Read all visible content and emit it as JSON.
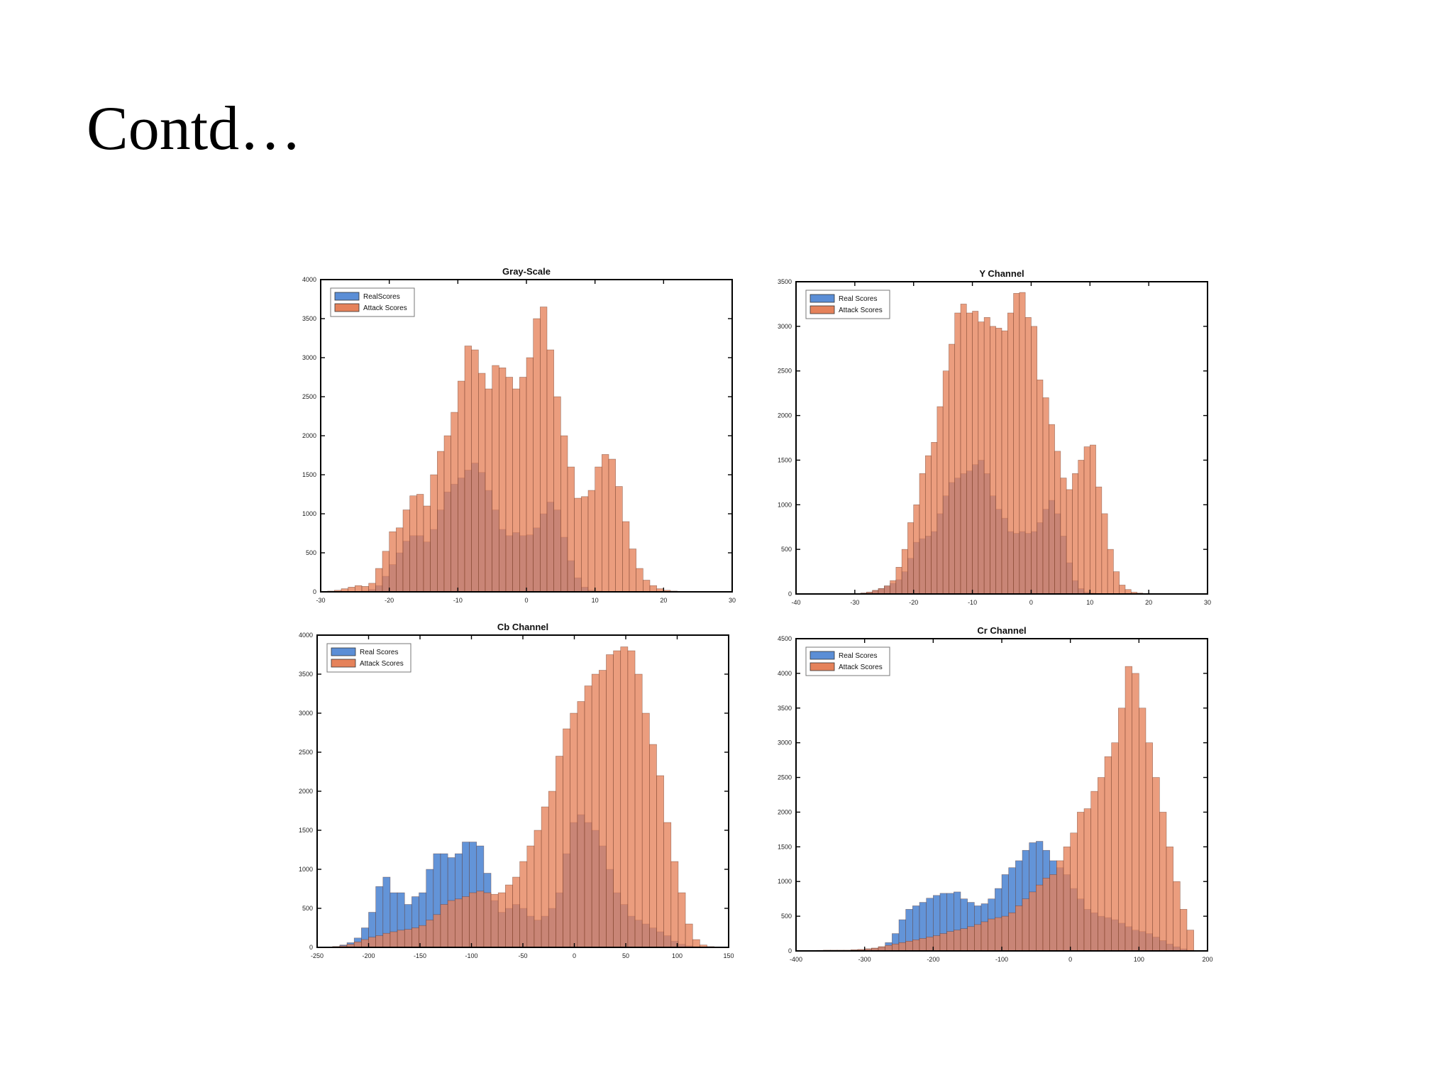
{
  "slide": {
    "title": "Contd…"
  },
  "colors": {
    "real": "#5B8ED6",
    "attack": "#E5825A",
    "edge": "#5a2a1a"
  },
  "chart_data": [
    {
      "type": "bar",
      "title": "Gray-Scale",
      "xlim": [
        -30,
        30
      ],
      "ylim": [
        0,
        4000
      ],
      "xticks": [
        -30,
        -20,
        -10,
        0,
        10,
        20,
        30
      ],
      "yticks": [
        0,
        500,
        1000,
        1500,
        2000,
        2500,
        3000,
        3500,
        4000
      ],
      "legend": {
        "placement": "top-left",
        "entries": [
          "RealScores",
          "Attack Scores"
        ]
      },
      "bin_edges": [
        -29,
        -28,
        -27,
        -26,
        -25,
        -24,
        -23,
        -22,
        -21,
        -20,
        -19,
        -18,
        -17,
        -16,
        -15,
        -14,
        -13,
        -12,
        -11,
        -10,
        -9,
        -8,
        -7,
        -6,
        -5,
        -4,
        -3,
        -2,
        -1,
        0,
        1,
        2,
        3,
        4,
        5,
        6,
        7,
        8,
        9,
        10,
        11,
        12,
        13,
        14,
        15,
        16,
        17,
        18,
        19,
        20,
        21,
        22,
        23,
        24,
        25,
        26,
        27,
        28,
        29
      ],
      "series": [
        {
          "name": "Real Scores",
          "values": [
            0,
            0,
            0,
            0,
            0,
            10,
            30,
            80,
            200,
            350,
            500,
            650,
            720,
            720,
            640,
            800,
            1050,
            1280,
            1380,
            1460,
            1560,
            1650,
            1530,
            1300,
            1050,
            800,
            720,
            760,
            720,
            730,
            820,
            1000,
            1150,
            1050,
            700,
            400,
            180,
            60,
            20,
            10,
            5,
            0,
            0,
            0,
            0,
            0,
            0,
            0,
            0,
            0,
            0,
            0,
            0,
            0,
            0,
            0,
            0,
            0
          ]
        },
        {
          "name": "Attack Scores",
          "values": [
            10,
            20,
            40,
            60,
            80,
            70,
            110,
            300,
            520,
            770,
            820,
            1050,
            1230,
            1250,
            1100,
            1500,
            1800,
            2000,
            2300,
            2700,
            3150,
            3100,
            2800,
            2600,
            2900,
            2870,
            2750,
            2600,
            2750,
            3000,
            3500,
            3650,
            3100,
            2500,
            2000,
            1600,
            1200,
            1220,
            1300,
            1600,
            1760,
            1700,
            1350,
            900,
            550,
            300,
            150,
            80,
            40,
            20,
            10,
            5,
            0,
            0,
            0,
            0,
            0,
            0
          ]
        }
      ]
    },
    {
      "type": "bar",
      "title": "Y Channel",
      "xlim": [
        -40,
        30
      ],
      "ylim": [
        0,
        3500
      ],
      "xticks": [
        -40,
        -30,
        -20,
        -10,
        0,
        10,
        20,
        30
      ],
      "yticks": [
        0,
        500,
        1000,
        1500,
        2000,
        2500,
        3000,
        3500
      ],
      "legend": {
        "placement": "top-left",
        "entries": [
          "Real Scores",
          "Attack Scores"
        ]
      },
      "bin_edges": [
        -31,
        -30,
        -29,
        -28,
        -27,
        -26,
        -25,
        -24,
        -23,
        -22,
        -21,
        -20,
        -19,
        -18,
        -17,
        -16,
        -15,
        -14,
        -13,
        -12,
        -11,
        -10,
        -9,
        -8,
        -7,
        -6,
        -5,
        -4,
        -3,
        -2,
        -1,
        0,
        1,
        2,
        3,
        4,
        5,
        6,
        7,
        8,
        9,
        10,
        11,
        12,
        13,
        14,
        15,
        16,
        17,
        18,
        19,
        20,
        21,
        22,
        23,
        24,
        25,
        26,
        27,
        28
      ],
      "series": [
        {
          "name": "Real Scores",
          "values": [
            0,
            5,
            10,
            20,
            40,
            60,
            90,
            120,
            160,
            250,
            400,
            580,
            620,
            650,
            700,
            900,
            1100,
            1250,
            1300,
            1350,
            1380,
            1450,
            1500,
            1350,
            1100,
            950,
            850,
            700,
            680,
            700,
            680,
            700,
            800,
            950,
            1050,
            900,
            650,
            350,
            150,
            60,
            20,
            10,
            5,
            0,
            0,
            0,
            0,
            0,
            0,
            0,
            0,
            0,
            0,
            0,
            0,
            0,
            0,
            0,
            0
          ]
        },
        {
          "name": "Attack Scores",
          "values": [
            0,
            5,
            10,
            20,
            40,
            60,
            90,
            150,
            300,
            500,
            800,
            1000,
            1350,
            1550,
            1700,
            2100,
            2500,
            2800,
            3150,
            3250,
            3150,
            3170,
            3050,
            3100,
            3000,
            2980,
            2950,
            3150,
            3370,
            3380,
            3100,
            3000,
            2400,
            2200,
            1900,
            1600,
            1300,
            1170,
            1350,
            1500,
            1650,
            1670,
            1200,
            900,
            500,
            250,
            100,
            50,
            20,
            10,
            0,
            0,
            0,
            0,
            0,
            0,
            0,
            0,
            0
          ]
        }
      ]
    },
    {
      "type": "bar",
      "title": "Cb Channel",
      "xlim": [
        -250,
        150
      ],
      "ylim": [
        0,
        4000
      ],
      "xticks": [
        -250,
        -200,
        -150,
        -100,
        -50,
        0,
        50,
        100,
        150
      ],
      "yticks": [
        0,
        500,
        1000,
        1500,
        2000,
        2500,
        3000,
        3500,
        4000
      ],
      "legend": {
        "placement": "top-left",
        "entries": [
          "Real Scores",
          "Attack Scores"
        ]
      },
      "bin_edges": [
        -235,
        -228,
        -221,
        -214,
        -207,
        -200,
        -193,
        -186,
        -179,
        -172,
        -165,
        -158,
        -151,
        -144,
        -137,
        -130,
        -123,
        -116,
        -109,
        -102,
        -95,
        -88,
        -81,
        -74,
        -67,
        -60,
        -53,
        -46,
        -39,
        -32,
        -25,
        -18,
        -11,
        -4,
        3,
        10,
        17,
        24,
        31,
        38,
        45,
        52,
        59,
        66,
        73,
        80,
        87,
        94,
        101,
        108,
        115,
        122,
        129,
        136
      ],
      "series": [
        {
          "name": "Real Scores",
          "values": [
            10,
            30,
            60,
            120,
            250,
            450,
            780,
            900,
            700,
            700,
            550,
            650,
            700,
            1000,
            1200,
            1200,
            1150,
            1200,
            1350,
            1350,
            1300,
            950,
            600,
            450,
            500,
            550,
            500,
            400,
            350,
            400,
            500,
            700,
            1200,
            1600,
            1700,
            1600,
            1500,
            1300,
            1000,
            700,
            550,
            400,
            350,
            300,
            250,
            200,
            150,
            80,
            40,
            20,
            10,
            5,
            0
          ]
        },
        {
          "name": "Attack Scores",
          "values": [
            10,
            20,
            40,
            70,
            100,
            130,
            150,
            180,
            200,
            220,
            230,
            250,
            280,
            350,
            420,
            550,
            600,
            620,
            650,
            700,
            720,
            700,
            680,
            700,
            800,
            900,
            1100,
            1300,
            1500,
            1800,
            2000,
            2450,
            2800,
            3000,
            3150,
            3350,
            3500,
            3550,
            3750,
            3800,
            3850,
            3800,
            3500,
            3000,
            2600,
            2200,
            1600,
            1100,
            700,
            300,
            100,
            30,
            10
          ]
        }
      ]
    },
    {
      "type": "bar",
      "title": "Cr Channel",
      "xlim": [
        -400,
        200
      ],
      "ylim": [
        0,
        4500
      ],
      "xticks": [
        -400,
        -300,
        -200,
        -100,
        0,
        100,
        200
      ],
      "yticks": [
        0,
        500,
        1000,
        1500,
        2000,
        2500,
        3000,
        3500,
        4000,
        4500
      ],
      "legend": {
        "placement": "top-left",
        "entries": [
          "Real Scores",
          "Attack Scores"
        ]
      },
      "bin_edges": [
        -380,
        -370,
        -360,
        -350,
        -340,
        -330,
        -320,
        -310,
        -300,
        -290,
        -280,
        -270,
        -260,
        -250,
        -240,
        -230,
        -220,
        -210,
        -200,
        -190,
        -180,
        -170,
        -160,
        -150,
        -140,
        -130,
        -120,
        -110,
        -100,
        -90,
        -80,
        -70,
        -60,
        -50,
        -40,
        -30,
        -20,
        -10,
        0,
        10,
        20,
        30,
        40,
        50,
        60,
        70,
        80,
        90,
        100,
        110,
        120,
        130,
        140,
        150,
        160,
        170,
        180
      ],
      "series": [
        {
          "name": "Real Scores",
          "values": [
            5,
            8,
            10,
            10,
            10,
            10,
            15,
            20,
            30,
            40,
            60,
            120,
            250,
            450,
            600,
            650,
            700,
            760,
            800,
            830,
            830,
            850,
            750,
            700,
            650,
            680,
            750,
            900,
            1100,
            1200,
            1300,
            1450,
            1560,
            1580,
            1450,
            1300,
            1200,
            1100,
            900,
            750,
            600,
            550,
            500,
            480,
            450,
            400,
            350,
            300,
            280,
            250,
            200,
            150,
            100,
            60,
            30,
            10
          ]
        },
        {
          "name": "Attack Scores",
          "values": [
            5,
            8,
            10,
            10,
            10,
            10,
            15,
            20,
            30,
            40,
            60,
            80,
            100,
            120,
            140,
            160,
            180,
            200,
            220,
            250,
            280,
            300,
            320,
            350,
            380,
            420,
            460,
            480,
            500,
            550,
            650,
            750,
            850,
            950,
            1050,
            1100,
            1300,
            1500,
            1700,
            2000,
            2050,
            2300,
            2500,
            2800,
            3000,
            3500,
            4100,
            4000,
            3500,
            3000,
            2500,
            2000,
            1500,
            1000,
            600,
            300
          ]
        }
      ]
    }
  ]
}
